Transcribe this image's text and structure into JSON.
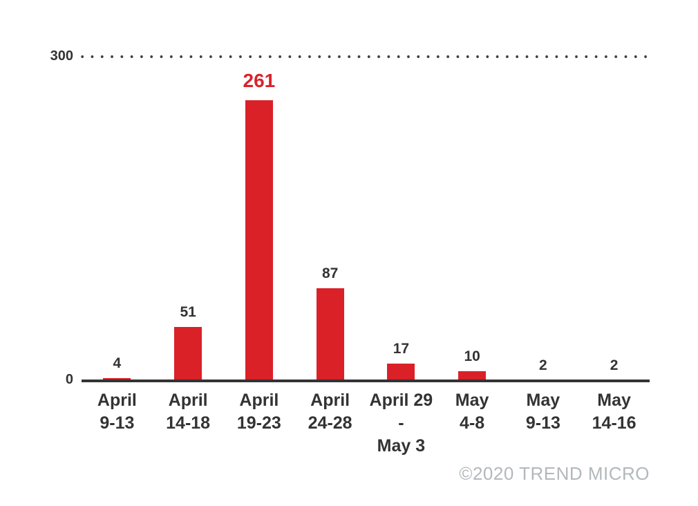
{
  "chart_data": {
    "type": "bar",
    "categories": [
      [
        "April",
        "9-13"
      ],
      [
        "April",
        "14-18"
      ],
      [
        "April",
        "19-23"
      ],
      [
        "April",
        "24-28"
      ],
      [
        "April 29 -",
        "May 3"
      ],
      [
        "May",
        "4-8"
      ],
      [
        "May",
        "9-13"
      ],
      [
        "May",
        "14-16"
      ]
    ],
    "values": [
      4,
      51,
      261,
      87,
      17,
      10,
      2,
      2
    ],
    "highlight_index": 2,
    "title": "",
    "xlabel": "",
    "ylabel": "",
    "ylim": [
      0,
      300
    ],
    "yticks": [
      {
        "value": 300,
        "label": "300"
      },
      {
        "value": 0,
        "label": "0"
      }
    ],
    "gridline_style": "dotted",
    "legend_position": "none",
    "bar_color": "#da2128",
    "highlight_label_color": "#d8232a",
    "label_color": "#333333",
    "axis_color": "#333333"
  },
  "footer": {
    "copyright": "©2020 TREND MICRO",
    "color": "#b2b8bb"
  }
}
